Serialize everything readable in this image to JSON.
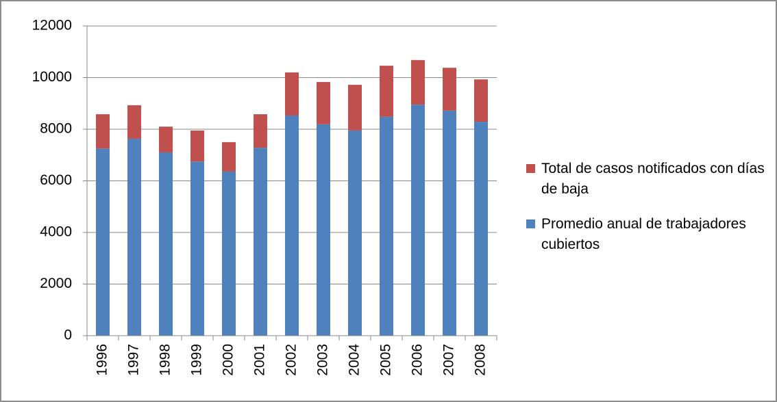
{
  "chart_data": {
    "type": "stacked_bar",
    "categories": [
      "1996",
      "1997",
      "1998",
      "1999",
      "2000",
      "2001",
      "2002",
      "2003",
      "2004",
      "2005",
      "2006",
      "2007",
      "2008"
    ],
    "series": [
      {
        "name": "Promedio anual de trabajadores cubiertos",
        "color": "#4f81bd",
        "values": [
          7250,
          7630,
          7100,
          6750,
          6360,
          7280,
          8530,
          8190,
          7950,
          8480,
          8950,
          8720,
          8290
        ]
      },
      {
        "name": "Total de casos notificados con días de baja",
        "color": "#c0504d",
        "values": [
          1330,
          1300,
          1000,
          1200,
          1140,
          1300,
          1670,
          1640,
          1770,
          1980,
          1730,
          1660,
          1640
        ]
      }
    ],
    "ylim": [
      0,
      12000
    ],
    "yticks": [
      0,
      2000,
      4000,
      6000,
      8000,
      10000,
      12000
    ],
    "grid": true,
    "legend": "right"
  }
}
